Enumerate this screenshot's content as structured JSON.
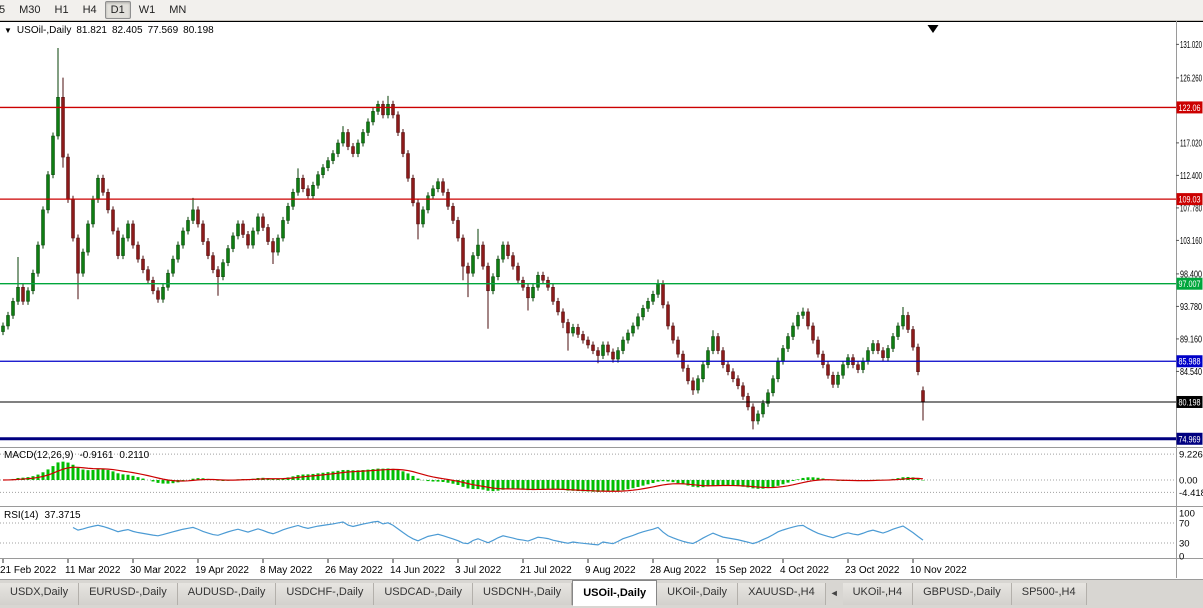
{
  "icons": {
    "symbol_dropdown": "▼",
    "tab_scroll_left": "◄"
  },
  "toolbar": {
    "buttons": [
      {
        "label": "5",
        "active": false,
        "partial": true
      },
      {
        "label": "M30",
        "active": false
      },
      {
        "label": "H1",
        "active": false
      },
      {
        "label": "H4",
        "active": false
      },
      {
        "label": "D1",
        "active": true
      },
      {
        "label": "W1",
        "active": false
      },
      {
        "label": "MN",
        "active": false
      }
    ]
  },
  "window": {
    "chart_header": {
      "symbol": "USOil-,Daily",
      "open": "81.821",
      "high": "82.405",
      "low": "77.569",
      "close": "80.198"
    }
  },
  "tabs": [
    {
      "label": "USDX,Daily",
      "active": false
    },
    {
      "label": "EURUSD-,Daily",
      "active": false
    },
    {
      "label": "AUDUSD-,Daily",
      "active": false
    },
    {
      "label": "USDCHF-,Daily",
      "active": false
    },
    {
      "label": "USDCAD-,Daily",
      "active": false
    },
    {
      "label": "USDCNH-,Daily",
      "active": false
    },
    {
      "label": "USOil-,Daily",
      "active": true
    },
    {
      "label": "UKOil-,Daily",
      "active": false
    },
    {
      "label": "XAUUSD-,H4",
      "active": false
    },
    {
      "icon": "◄",
      "name": "tab-scroll-left-icon"
    },
    {
      "label": "UKOil-,H4",
      "active": false
    },
    {
      "label": "GBPUSD-,Daily",
      "active": false
    },
    {
      "label": "SP500-,H4",
      "active": false
    }
  ],
  "chart_data": {
    "type": "candlestick",
    "symbol": "USOil-",
    "timeframe": "Daily",
    "ohlc_current": {
      "open": 81.821,
      "high": 82.405,
      "low": 77.569,
      "close": 80.198
    },
    "colors": {
      "up": "#0E7D12",
      "down": "#8C1A1A",
      "up_stroke": "#063F06",
      "down_stroke": "#4A0C0C",
      "background": "#FFFFFF"
    },
    "price_axis_ticks": [
      {
        "v": 131.02,
        "label": "131.020"
      },
      {
        "v": 126.26,
        "label": "126.260"
      },
      {
        "v": 117.02,
        "label": "117.020"
      },
      {
        "v": 112.4,
        "label": "112.400"
      },
      {
        "v": 107.78,
        "label": "107.780"
      },
      {
        "v": 103.16,
        "label": "103.160"
      },
      {
        "v": 98.4,
        "label": "98.400"
      },
      {
        "v": 93.78,
        "label": "93.780"
      },
      {
        "v": 89.16,
        "label": "89.160"
      },
      {
        "v": 84.54,
        "label": "84.540"
      }
    ],
    "price_lines": [
      {
        "v": 122.06,
        "label": "122.06",
        "color": "#CC0000",
        "width": 1.3
      },
      {
        "v": 109.03,
        "label": "109.03",
        "color": "#CC0000",
        "width": 1.3
      },
      {
        "v": 97.007,
        "label": "97.007",
        "color": "#00A63C",
        "width": 1.3
      },
      {
        "v": 85.988,
        "label": "85.988",
        "color": "#0000C8",
        "width": 1.3
      },
      {
        "v": 80.198,
        "label": "80.198",
        "color": "#000000",
        "width": 1
      },
      {
        "v": 74.969,
        "label": "74.969",
        "color": "#000080",
        "width": 3
      }
    ],
    "x_ticks": {
      "bar_step": 13,
      "labels": [
        "21 Feb 2022",
        "11 Mar 2022",
        "30 Mar 2022",
        "19 Apr 2022",
        "8 May 2022",
        "26 May 2022",
        "14 Jun 2022",
        "3 Jul 2022",
        "21 Jul 2022",
        "9 Aug 2022",
        "28 Aug 2022",
        "15 Sep 2022",
        "4 Oct 2022",
        "23 Oct 2022",
        "10 Nov 2022"
      ]
    },
    "annotations": [
      {
        "type": "triangle-down",
        "bar_index": 186,
        "price": 133.2
      }
    ],
    "indicators": {
      "macd": {
        "label": "MACD(12,26,9)",
        "fast": 12,
        "slow": 26,
        "signal": 9,
        "value_main": "-0.9161",
        "value_signal": "0.2110",
        "axis": [
          {
            "v": 9.2266,
            "label": "9.2266"
          },
          {
            "v": 0,
            "label": "0.00"
          },
          {
            "v": -4.4188,
            "label": "-4.4188"
          }
        ],
        "hist_color": "#00BE00",
        "signal_color": "#CC0000"
      },
      "rsi": {
        "label": "RSI(14)",
        "period": 14,
        "value": "37.3715",
        "axis": [
          {
            "v": 100,
            "label": "100"
          },
          {
            "v": 70,
            "label": "70"
          },
          {
            "v": 30,
            "label": "30"
          },
          {
            "v": 0,
            "label": "0"
          }
        ],
        "levels": [
          70,
          30
        ],
        "color": "#4C9BD4"
      }
    },
    "candles": [
      [
        90.2,
        91.5,
        89.7,
        91.0
      ],
      [
        91.0,
        93.0,
        90.5,
        92.5
      ],
      [
        92.5,
        95.0,
        92.0,
        94.5
      ],
      [
        94.5,
        100.8,
        94.0,
        96.5
      ],
      [
        96.5,
        97.0,
        94.0,
        94.5
      ],
      [
        94.5,
        96.5,
        94.0,
        96.0
      ],
      [
        96.0,
        99.0,
        95.5,
        98.5
      ],
      [
        98.5,
        103.0,
        98.0,
        102.5
      ],
      [
        102.5,
        108.0,
        102.0,
        107.5
      ],
      [
        107.5,
        113.0,
        107.0,
        112.5
      ],
      [
        112.5,
        118.5,
        112.0,
        118.0
      ],
      [
        118.0,
        130.5,
        117.5,
        123.5
      ],
      [
        123.5,
        126.3,
        113.5,
        115.0
      ],
      [
        115.0,
        115.5,
        108.5,
        109.0
      ],
      [
        109.0,
        109.5,
        103.0,
        103.5
      ],
      [
        103.5,
        104.0,
        94.8,
        98.5
      ],
      [
        98.5,
        102.0,
        98.0,
        101.5
      ],
      [
        101.5,
        106.0,
        101.0,
        105.5
      ],
      [
        105.5,
        109.5,
        105.0,
        109.0
      ],
      [
        109.0,
        112.5,
        108.5,
        112.0
      ],
      [
        112.0,
        112.5,
        109.5,
        110.0
      ],
      [
        110.0,
        110.5,
        107.0,
        107.5
      ],
      [
        107.5,
        108.0,
        104.0,
        104.5
      ],
      [
        104.5,
        105.0,
        100.5,
        101.0
      ],
      [
        101.0,
        104.0,
        100.5,
        103.5
      ],
      [
        103.5,
        106.0,
        103.0,
        105.5
      ],
      [
        105.5,
        106.0,
        102.0,
        102.5
      ],
      [
        102.5,
        103.0,
        100.0,
        100.5
      ],
      [
        100.5,
        101.0,
        98.5,
        99.0
      ],
      [
        99.0,
        99.5,
        97.0,
        97.5
      ],
      [
        97.5,
        98.0,
        95.5,
        96.0
      ],
      [
        96.0,
        96.5,
        94.3,
        94.8
      ],
      [
        94.8,
        97.0,
        94.3,
        96.5
      ],
      [
        96.5,
        99.0,
        96.0,
        98.5
      ],
      [
        98.5,
        101.0,
        98.0,
        100.5
      ],
      [
        100.5,
        103.0,
        100.0,
        102.5
      ],
      [
        102.5,
        105.0,
        102.0,
        104.5
      ],
      [
        104.5,
        106.5,
        104.0,
        106.0
      ],
      [
        106.0,
        109.2,
        105.5,
        107.5
      ],
      [
        107.5,
        108.0,
        105.0,
        105.5
      ],
      [
        105.5,
        106.0,
        102.5,
        103.0
      ],
      [
        103.0,
        103.5,
        100.5,
        101.0
      ],
      [
        101.0,
        101.5,
        98.5,
        99.0
      ],
      [
        99.0,
        99.5,
        95.3,
        98.0
      ],
      [
        98.0,
        100.5,
        97.5,
        100.0
      ],
      [
        100.0,
        102.5,
        99.5,
        102.0
      ],
      [
        102.0,
        104.3,
        101.5,
        103.8
      ],
      [
        103.8,
        106.0,
        103.3,
        105.5
      ],
      [
        105.5,
        106.0,
        103.5,
        104.0
      ],
      [
        104.0,
        104.5,
        102.0,
        102.5
      ],
      [
        102.5,
        105.0,
        102.0,
        104.5
      ],
      [
        104.5,
        107.0,
        104.0,
        106.5
      ],
      [
        106.5,
        107.0,
        104.5,
        105.0
      ],
      [
        105.0,
        105.5,
        102.5,
        103.0
      ],
      [
        103.0,
        103.5,
        99.8,
        101.5
      ],
      [
        101.5,
        104.0,
        101.0,
        103.5
      ],
      [
        103.5,
        106.5,
        103.0,
        106.0
      ],
      [
        106.0,
        108.5,
        105.5,
        108.0
      ],
      [
        108.0,
        110.5,
        107.5,
        110.0
      ],
      [
        110.0,
        113.4,
        109.5,
        112.0
      ],
      [
        112.0,
        112.5,
        110.0,
        110.5
      ],
      [
        110.5,
        111.0,
        109.0,
        109.5
      ],
      [
        109.5,
        111.5,
        109.0,
        111.0
      ],
      [
        111.0,
        113.0,
        110.5,
        112.5
      ],
      [
        112.5,
        114.0,
        112.0,
        113.5
      ],
      [
        113.5,
        115.0,
        113.0,
        114.5
      ],
      [
        114.5,
        116.0,
        114.0,
        115.5
      ],
      [
        115.5,
        117.5,
        115.0,
        117.0
      ],
      [
        117.0,
        119.4,
        116.5,
        118.5
      ],
      [
        118.5,
        119.0,
        116.0,
        116.5
      ],
      [
        116.5,
        117.0,
        115.0,
        115.5
      ],
      [
        115.5,
        117.5,
        115.0,
        117.0
      ],
      [
        117.0,
        119.0,
        116.5,
        118.5
      ],
      [
        118.5,
        120.5,
        118.0,
        120.0
      ],
      [
        120.0,
        122.0,
        119.5,
        121.5
      ],
      [
        121.5,
        123.0,
        121.0,
        122.5
      ],
      [
        122.5,
        123.0,
        120.5,
        121.0
      ],
      [
        121.0,
        123.7,
        120.5,
        122.5
      ],
      [
        122.5,
        123.0,
        120.5,
        121.0
      ],
      [
        121.0,
        121.5,
        118.0,
        118.5
      ],
      [
        118.5,
        119.0,
        115.0,
        115.5
      ],
      [
        115.5,
        116.0,
        111.5,
        112.0
      ],
      [
        112.0,
        112.5,
        108.0,
        108.5
      ],
      [
        108.5,
        109.0,
        103.3,
        105.5
      ],
      [
        105.5,
        108.0,
        105.0,
        107.5
      ],
      [
        107.5,
        110.0,
        107.0,
        109.5
      ],
      [
        109.5,
        111.0,
        109.0,
        110.5
      ],
      [
        110.5,
        112.0,
        110.0,
        111.5
      ],
      [
        111.5,
        112.0,
        109.5,
        110.0
      ],
      [
        110.0,
        110.5,
        107.5,
        108.0
      ],
      [
        108.0,
        108.5,
        105.5,
        106.0
      ],
      [
        106.0,
        106.5,
        103.0,
        103.5
      ],
      [
        103.5,
        104.0,
        97.5,
        99.5
      ],
      [
        99.5,
        100.0,
        95.1,
        98.5
      ],
      [
        98.5,
        101.5,
        98.0,
        101.0
      ],
      [
        101.0,
        104.8,
        100.5,
        102.5
      ],
      [
        102.5,
        103.0,
        99.0,
        99.5
      ],
      [
        99.5,
        100.0,
        90.6,
        96.0
      ],
      [
        96.0,
        98.5,
        95.5,
        98.0
      ],
      [
        98.0,
        101.0,
        97.5,
        100.5
      ],
      [
        100.5,
        103.0,
        100.0,
        102.5
      ],
      [
        102.5,
        103.0,
        100.5,
        101.0
      ],
      [
        101.0,
        101.5,
        99.0,
        99.5
      ],
      [
        99.5,
        100.0,
        97.0,
        97.5
      ],
      [
        97.5,
        98.0,
        96.0,
        96.5
      ],
      [
        96.5,
        97.0,
        93.2,
        95.0
      ],
      [
        95.0,
        97.0,
        94.5,
        96.5
      ],
      [
        96.5,
        98.7,
        96.0,
        98.2
      ],
      [
        98.2,
        98.7,
        97.0,
        97.5
      ],
      [
        97.5,
        98.0,
        96.0,
        96.5
      ],
      [
        96.5,
        97.0,
        94.0,
        94.5
      ],
      [
        94.5,
        95.0,
        92.5,
        93.0
      ],
      [
        93.0,
        93.5,
        90.7,
        91.5
      ],
      [
        91.5,
        92.0,
        87.5,
        90.0
      ],
      [
        90.0,
        91.3,
        89.5,
        90.8
      ],
      [
        90.8,
        91.3,
        89.3,
        89.8
      ],
      [
        89.8,
        90.3,
        88.5,
        89.0
      ],
      [
        89.0,
        89.5,
        87.8,
        88.3
      ],
      [
        88.3,
        88.8,
        87.0,
        87.5
      ],
      [
        87.5,
        88.0,
        85.7,
        86.8
      ],
      [
        86.8,
        88.8,
        86.3,
        88.3
      ],
      [
        88.3,
        88.8,
        86.8,
        87.3
      ],
      [
        87.3,
        87.8,
        85.8,
        86.3
      ],
      [
        86.3,
        88.0,
        85.8,
        87.5
      ],
      [
        87.5,
        89.5,
        87.0,
        89.0
      ],
      [
        89.0,
        90.5,
        88.5,
        90.0
      ],
      [
        90.0,
        91.5,
        89.5,
        91.0
      ],
      [
        91.0,
        92.8,
        90.5,
        92.3
      ],
      [
        92.3,
        94.0,
        91.8,
        93.5
      ],
      [
        93.5,
        95.0,
        93.0,
        94.5
      ],
      [
        94.5,
        96.0,
        94.0,
        95.5
      ],
      [
        95.5,
        97.6,
        95.0,
        97.0
      ],
      [
        97.0,
        97.5,
        93.5,
        94.0
      ],
      [
        94.0,
        94.5,
        90.5,
        91.0
      ],
      [
        91.0,
        91.5,
        88.5,
        89.0
      ],
      [
        89.0,
        89.5,
        86.5,
        87.0
      ],
      [
        87.0,
        87.5,
        84.5,
        85.0
      ],
      [
        85.0,
        85.5,
        82.7,
        83.2
      ],
      [
        83.2,
        83.7,
        81.2,
        81.9
      ],
      [
        81.9,
        84.0,
        81.4,
        83.5
      ],
      [
        83.5,
        86.0,
        83.0,
        85.5
      ],
      [
        85.5,
        88.0,
        85.0,
        87.5
      ],
      [
        87.5,
        90.4,
        87.0,
        89.5
      ],
      [
        89.5,
        90.0,
        87.0,
        87.5
      ],
      [
        87.5,
        88.0,
        85.0,
        85.5
      ],
      [
        85.5,
        86.0,
        84.0,
        84.5
      ],
      [
        84.5,
        85.0,
        83.0,
        83.5
      ],
      [
        83.5,
        84.0,
        82.0,
        82.5
      ],
      [
        82.5,
        83.0,
        80.5,
        81.0
      ],
      [
        81.0,
        81.5,
        79.0,
        79.5
      ],
      [
        79.5,
        80.0,
        76.3,
        77.5
      ],
      [
        77.5,
        79.0,
        77.0,
        78.5
      ],
      [
        78.5,
        80.5,
        78.0,
        80.0
      ],
      [
        80.0,
        82.0,
        79.5,
        81.5
      ],
      [
        81.5,
        84.0,
        81.0,
        83.5
      ],
      [
        83.5,
        86.5,
        83.0,
        86.0
      ],
      [
        86.0,
        88.3,
        85.5,
        87.8
      ],
      [
        87.8,
        90.0,
        87.3,
        89.5
      ],
      [
        89.5,
        91.5,
        89.0,
        91.0
      ],
      [
        91.0,
        93.0,
        90.5,
        92.5
      ],
      [
        92.5,
        93.6,
        92.0,
        93.0
      ],
      [
        93.0,
        93.5,
        90.5,
        91.0
      ],
      [
        91.0,
        91.5,
        88.5,
        89.0
      ],
      [
        89.0,
        89.5,
        86.5,
        87.0
      ],
      [
        87.0,
        87.5,
        85.0,
        85.5
      ],
      [
        85.5,
        86.0,
        83.5,
        84.0
      ],
      [
        84.0,
        84.5,
        82.2,
        82.7
      ],
      [
        82.7,
        84.5,
        82.2,
        84.0
      ],
      [
        84.0,
        86.0,
        83.5,
        85.5
      ],
      [
        85.5,
        87.0,
        85.0,
        86.5
      ],
      [
        86.5,
        87.0,
        85.0,
        85.5
      ],
      [
        85.5,
        86.0,
        84.3,
        84.8
      ],
      [
        84.8,
        86.5,
        84.3,
        86.0
      ],
      [
        86.0,
        88.0,
        85.5,
        87.5
      ],
      [
        87.5,
        89.0,
        87.0,
        88.5
      ],
      [
        88.5,
        89.0,
        87.0,
        87.5
      ],
      [
        87.5,
        88.0,
        86.0,
        86.5
      ],
      [
        86.5,
        88.3,
        86.0,
        87.8
      ],
      [
        87.8,
        90.0,
        87.3,
        89.5
      ],
      [
        89.5,
        91.5,
        89.0,
        91.0
      ],
      [
        91.0,
        93.7,
        90.5,
        92.5
      ],
      [
        92.5,
        93.0,
        90.0,
        90.5
      ],
      [
        90.5,
        91.0,
        87.5,
        88.0
      ],
      [
        88.0,
        88.5,
        84.0,
        84.5
      ],
      [
        81.821,
        82.405,
        77.569,
        80.198
      ]
    ]
  }
}
